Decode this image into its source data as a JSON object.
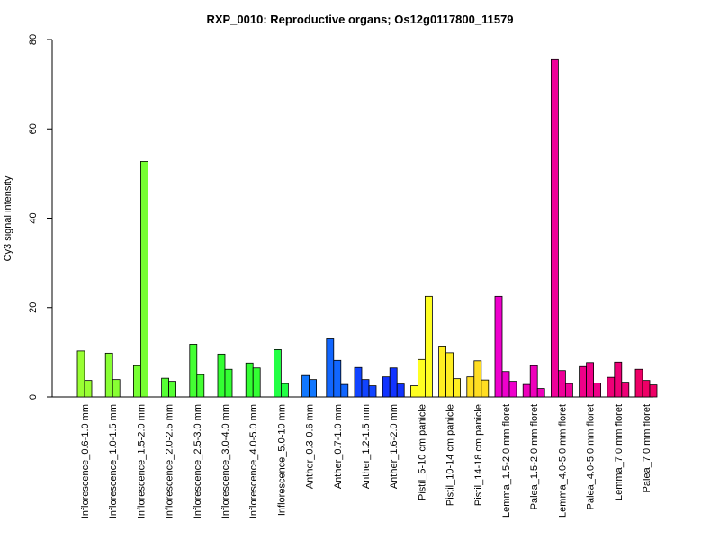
{
  "chart_data": {
    "type": "bar",
    "title": "RXP_0010: Reproductive organs; Os12g0117800_11579",
    "ylabel": "Cy3 signal intensity",
    "xlabel": "",
    "ylim": [
      0,
      80
    ],
    "yticks": [
      0,
      20,
      40,
      60,
      80
    ],
    "groups": [
      {
        "label": "Inflorescence_0.6-1.0 mm",
        "color": "#99FF33",
        "values": [
          10.3,
          3.7
        ]
      },
      {
        "label": "Inflorescence_1.0-1.5 mm",
        "color": "#88FF33",
        "values": [
          9.8,
          3.9
        ]
      },
      {
        "label": "Inflorescence_1.5-2.0 mm",
        "color": "#77FF33",
        "values": [
          7.0,
          52.7
        ]
      },
      {
        "label": "Inflorescence_2.0-2.5 mm",
        "color": "#55FF33",
        "values": [
          4.2,
          3.5
        ]
      },
      {
        "label": "Inflorescence_2.5-3.0 mm",
        "color": "#44FF33",
        "values": [
          11.8,
          5.0
        ]
      },
      {
        "label": "Inflorescence_3.0-4.0 mm",
        "color": "#33FF33",
        "values": [
          9.6,
          6.2
        ]
      },
      {
        "label": "Inflorescence_4.0-5.0 mm",
        "color": "#33FF33",
        "values": [
          7.6,
          6.5
        ]
      },
      {
        "label": "Inflorescence_5.0-10 mm",
        "color": "#22FF44",
        "values": [
          10.6,
          3.0
        ]
      },
      {
        "label": "Anther_0.3-0.6 mm",
        "color": "#1177FF",
        "values": [
          4.8,
          3.9
        ]
      },
      {
        "label": "Anther_0.7-1.0 mm",
        "color": "#1166FF",
        "values": [
          13.0,
          8.2,
          2.8
        ]
      },
      {
        "label": "Anther_1.2-1.5 mm",
        "color": "#1144FF",
        "values": [
          6.6,
          3.9,
          2.5
        ]
      },
      {
        "label": "Anther_1.6-2.0 mm",
        "color": "#1133FF",
        "values": [
          4.5,
          6.5,
          2.9
        ]
      },
      {
        "label": "Pistil_5-10 cm panicle",
        "color": "#FFFF22",
        "values": [
          2.5,
          8.4,
          22.5
        ]
      },
      {
        "label": "Pistil_10-14 cm panicle",
        "color": "#FFEE22",
        "values": [
          11.4,
          9.9,
          4.1
        ]
      },
      {
        "label": "Pistil_14-18 cm panicle",
        "color": "#FFDD22",
        "values": [
          4.5,
          8.1,
          3.8
        ]
      },
      {
        "label": "Lemma_1.5-2.0 mm floret",
        "color": "#EE00CC",
        "values": [
          22.5,
          5.7,
          3.5
        ]
      },
      {
        "label": "Palea_1.5-2.0 mm floret",
        "color": "#EE00BB",
        "values": [
          2.8,
          7.0,
          1.9
        ]
      },
      {
        "label": "Lemma_4.0-5.0 mm floret",
        "color": "#EE0099",
        "values": [
          75.5,
          5.9,
          3.0
        ]
      },
      {
        "label": "Palea_4.0-5.0 mm floret",
        "color": "#EE0088",
        "values": [
          6.8,
          7.7,
          3.1
        ]
      },
      {
        "label": "Lemma_7.0 mm floret",
        "color": "#EE0077",
        "values": [
          4.4,
          7.8,
          3.3
        ]
      },
      {
        "label": "Palea_7.0 mm floret",
        "color": "#EE0066",
        "values": [
          6.2,
          3.7,
          2.7
        ]
      }
    ]
  }
}
